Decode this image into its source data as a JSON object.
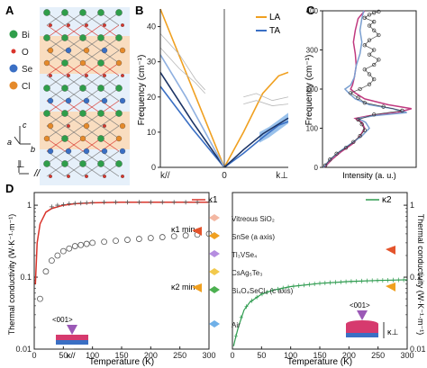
{
  "panels": {
    "a": "A",
    "b": "B",
    "c": "C",
    "d": "D"
  },
  "panelA": {
    "legend": [
      {
        "label": "Bi",
        "color": "#2f9e4a"
      },
      {
        "label": "O",
        "color": "#d9342b"
      },
      {
        "label": "Se",
        "color": "#3a6fc4"
      },
      {
        "label": "Cl",
        "color": "#e58a2b"
      }
    ],
    "axes": {
      "c": "c",
      "a": "a",
      "b": "b"
    },
    "bottom_left": "⊥",
    "bottom_right": "//"
  },
  "chart_data": [
    {
      "panel": "B",
      "type": "line",
      "ylabel": "Frequency (cm⁻¹)",
      "ylim": [
        0,
        45
      ],
      "yticks": [
        0,
        10,
        20,
        30,
        40
      ],
      "xticks": [
        "k//",
        "0",
        "k⊥"
      ],
      "legend": [
        "LA",
        "TA"
      ],
      "series": [
        {
          "name": "LA",
          "color": "#f0a020",
          "x": [
            -1,
            0
          ],
          "y": [
            45,
            0
          ]
        },
        {
          "name": "LA",
          "color": "#f0a020",
          "x": [
            0,
            0.3,
            0.6,
            0.85,
            1
          ],
          "y": [
            0,
            10,
            21,
            26,
            27
          ]
        },
        {
          "name": "TA",
          "color": "#3a6fc4",
          "x": [
            -1,
            -0.5,
            0
          ],
          "y": [
            23,
            11,
            0
          ]
        },
        {
          "name": "TA",
          "color": "#3a6fc4",
          "x": [
            0,
            0.3,
            0.6,
            0.85,
            1
          ],
          "y": [
            0,
            4,
            8.5,
            12,
            13
          ]
        },
        {
          "color": "#1c3466",
          "x": [
            -1,
            -0.5,
            0
          ],
          "y": [
            27,
            13,
            0
          ]
        },
        {
          "color": "#1c3466",
          "x": [
            0,
            0.3,
            0.6,
            1
          ],
          "y": [
            0,
            5,
            9.5,
            14
          ]
        },
        {
          "color": "#8fb0e0",
          "x": [
            -1,
            -0.6,
            -0.3,
            0
          ],
          "y": [
            32,
            20,
            10,
            0
          ]
        },
        {
          "color": "#b8b8b8",
          "x": [
            -1,
            -0.7,
            -0.45,
            -0.3
          ],
          "y": [
            38,
            32,
            25,
            22
          ]
        },
        {
          "color": "#b8b8b8",
          "x": [
            -1,
            -0.7,
            -0.45,
            -0.3
          ],
          "y": [
            34,
            28,
            24,
            21
          ]
        },
        {
          "color": "#b8b8b8",
          "x": [
            0.3,
            0.5,
            0.75,
            1
          ],
          "y": [
            20,
            21,
            19,
            20
          ]
        },
        {
          "color": "#b8b8b8",
          "x": [
            0.3,
            0.5,
            0.75,
            1
          ],
          "y": [
            18,
            19,
            17.5,
            18
          ]
        }
      ]
    },
    {
      "panel": "C",
      "type": "line",
      "xlabel": "Intensity (a. u.)",
      "ylabel": "Frequency (cm⁻¹)",
      "ylim": [
        0,
        400
      ],
      "yticks": [
        0,
        100,
        200,
        300,
        400
      ],
      "series": [
        {
          "color": "#c0397f",
          "x": [
            0.02,
            0.1,
            0.2,
            0.32,
            0.4,
            0.45,
            0.42,
            0.35,
            0.5,
            0.8,
            0.95,
            0.7,
            0.45,
            0.35,
            0.3,
            0.32,
            0.34,
            0.36,
            0.35,
            0.33,
            0.35,
            0.38,
            0.45
          ],
          "y": [
            0,
            20,
            40,
            60,
            80,
            100,
            115,
            125,
            132,
            140,
            150,
            160,
            175,
            190,
            200,
            210,
            230,
            260,
            290,
            320,
            350,
            380,
            400
          ]
        },
        {
          "color": "#7a9fd0",
          "x": [
            0.01,
            0.08,
            0.18,
            0.3,
            0.42,
            0.5,
            0.46,
            0.38,
            0.55,
            0.9,
            0.75,
            0.5,
            0.35,
            0.28,
            0.24,
            0.3,
            0.34,
            0.36,
            0.4,
            0.42,
            0.4,
            0.42,
            0.44
          ],
          "y": [
            0,
            20,
            40,
            60,
            80,
            100,
            115,
            125,
            132,
            140,
            150,
            160,
            175,
            190,
            200,
            210,
            230,
            260,
            290,
            320,
            350,
            380,
            400
          ]
        },
        {
          "color": "#333333",
          "markers": true,
          "x": [
            0.03,
            0.08,
            0.15,
            0.25,
            0.33,
            0.4,
            0.45,
            0.42,
            0.38,
            0.55,
            0.85,
            0.65,
            0.45,
            0.38,
            0.3,
            0.4,
            0.5,
            0.55,
            0.5,
            0.45,
            0.55,
            0.6,
            0.5,
            0.55,
            0.45,
            0.5,
            0.6,
            0.55,
            0.5,
            0.55,
            0.45,
            0.5,
            0.55,
            0.6
          ],
          "y": [
            5,
            20,
            35,
            50,
            65,
            80,
            95,
            110,
            122,
            135,
            145,
            155,
            165,
            178,
            190,
            200,
            212,
            225,
            238,
            250,
            262,
            275,
            288,
            300,
            312,
            325,
            338,
            350,
            362,
            372,
            382,
            390,
            395,
            398
          ]
        }
      ]
    },
    {
      "panel": "D",
      "type": "scatter",
      "xlabel": "Temperature (K)",
      "ylabel": "Thermal conductivity (W·K⁻¹·m⁻¹)",
      "ylabel_right": "Thermal conductivity (W·K⁻¹·m⁻¹)",
      "yscale": "log",
      "ylim": [
        0.01,
        1.5
      ],
      "xlim": [
        0,
        300
      ],
      "xticks": [
        0,
        50,
        100,
        150,
        200,
        250,
        300
      ],
      "yticks": [
        "0.01",
        "0.1",
        "1"
      ],
      "left": {
        "legend": "κ1",
        "annotations": [
          "κ1 min",
          "κ2 min"
        ],
        "inset_label": "<001>",
        "inset_sub": "κ//",
        "series": [
          {
            "name": "κ1",
            "color": "#d9342b",
            "fit": true,
            "x": [
              2,
              5,
              10,
              20,
              30,
              50,
              70,
              100,
              150,
              200,
              250,
              300
            ],
            "y": [
              0.08,
              0.3,
              0.55,
              0.8,
              0.9,
              1.0,
              1.05,
              1.08,
              1.1,
              1.1,
              1.1,
              1.1
            ]
          },
          {
            "color": "#555555",
            "markers": "cross",
            "x": [
              30,
              40,
              50,
              60,
              70,
              80,
              90,
              100,
              120,
              140,
              160,
              180,
              200,
              220,
              240,
              260,
              280,
              300
            ],
            "y": [
              0.95,
              1.0,
              1.02,
              1.05,
              1.06,
              1.07,
              1.08,
              1.09,
              1.1,
              1.1,
              1.1,
              1.1,
              1.1,
              1.1,
              1.1,
              1.1,
              1.1,
              1.1
            ]
          },
          {
            "color": "#555555",
            "markers": "open-circle",
            "x": [
              10,
              20,
              30,
              40,
              50,
              60,
              70,
              80,
              90,
              100,
              120,
              140,
              160,
              180,
              200,
              220,
              240,
              260,
              280,
              300
            ],
            "y": [
              0.05,
              0.12,
              0.17,
              0.2,
              0.23,
              0.25,
              0.27,
              0.28,
              0.29,
              0.3,
              0.31,
              0.32,
              0.33,
              0.34,
              0.35,
              0.36,
              0.37,
              0.38,
              0.39,
              0.4
            ]
          }
        ]
      },
      "right": {
        "legend": "κ2",
        "inset_label": "<001>",
        "inset_sub": "κ⊥",
        "series": [
          {
            "name": "κ2",
            "color": "#2e9b4f",
            "fit": true,
            "x": [
              2,
              5,
              10,
              20,
              30,
              50,
              70,
              100,
              150,
              200,
              250,
              300
            ],
            "y": [
              0.011,
              0.014,
              0.02,
              0.035,
              0.045,
              0.058,
              0.066,
              0.074,
              0.082,
              0.087,
              0.09,
              0.092
            ]
          }
        ]
      },
      "middle_legend": [
        {
          "label": "Vitreous SiO₂",
          "color": "#f3b7a2"
        },
        {
          "label": "SnSe (a axis)",
          "color": "#f0a020"
        },
        {
          "label": "Tl₃VSe₄",
          "color": "#b58de0"
        },
        {
          "label": "CsAg₅Te₃",
          "color": "#f2c94c"
        },
        {
          "label": "Bi₄O₄SeCl₂ (c axis)",
          "color": "#4cb050"
        },
        {
          "label": "Air",
          "color": "#6fb0e8"
        }
      ]
    }
  ]
}
